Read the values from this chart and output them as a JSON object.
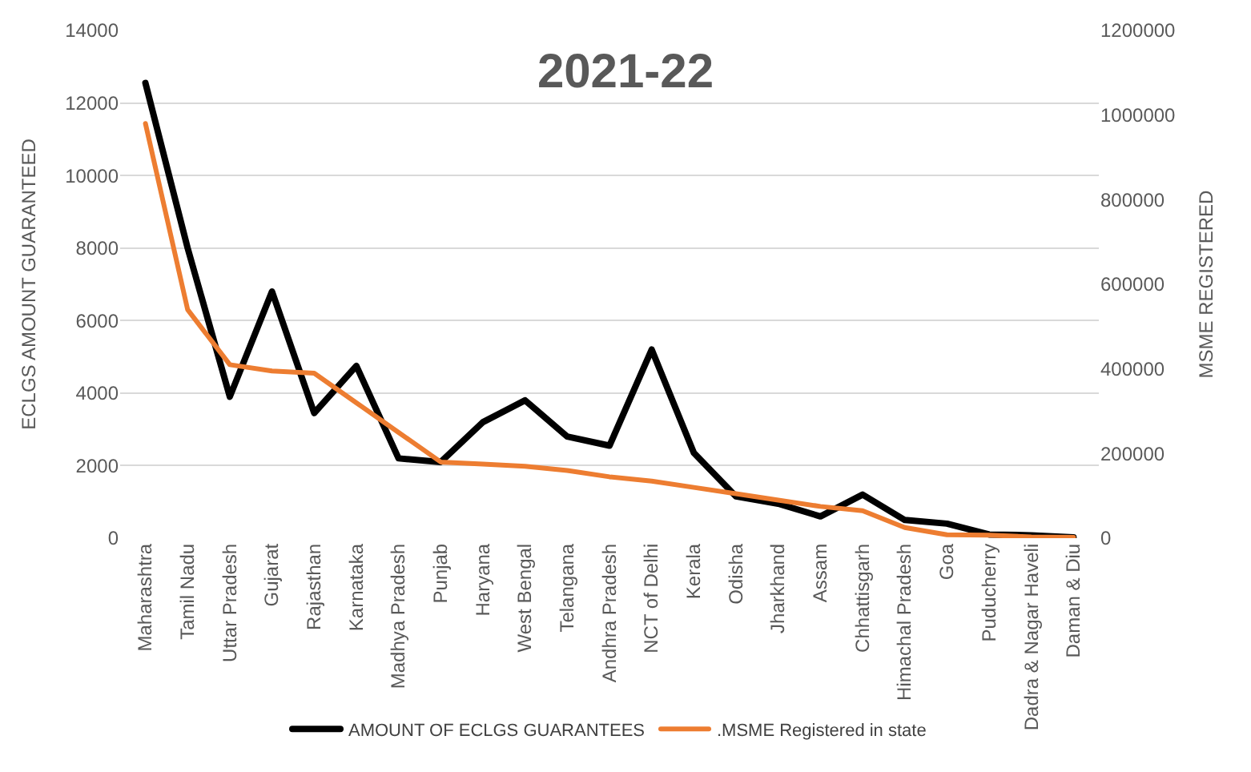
{
  "chart_data": {
    "type": "line",
    "title": "2021-22",
    "ylabel": "ECLGS AMOUNT GUARANTEED",
    "y2label": "MSME REGISTERED",
    "categories": [
      "Maharashtra",
      "Tamil Nadu",
      "Uttar Pradesh",
      "Gujarat",
      "Rajasthan",
      "Karnataka",
      "Madhya Pradesh",
      "Punjab",
      "Haryana",
      "West Bengal",
      "Telangana",
      "Andhra Pradesh",
      "NCT of Delhi",
      "Kerala",
      "Odisha",
      "Jharkhand",
      "Assam",
      "Chhattisgarh",
      "Himachal Pradesh",
      "Goa",
      "Puducherry",
      "Dadra & Nagar Haveli",
      "Daman & Diu"
    ],
    "series": [
      {
        "name": "AMOUNT OF ECLGS GUARANTEES",
        "color": "#000000",
        "values": [
          12550,
          8000,
          3900,
          6800,
          3450,
          4750,
          2200,
          2100,
          3200,
          3800,
          2800,
          2550,
          5200,
          2350,
          1150,
          950,
          600,
          1200,
          500,
          400,
          100,
          80,
          20
        ]
      },
      {
        "name": ".MSME Registered in state",
        "color": "#ed7d31",
        "axis": "y2",
        "values": [
          980000,
          540000,
          410000,
          395000,
          390000,
          320000,
          250000,
          180000,
          175000,
          170000,
          160000,
          145000,
          135000,
          120000,
          105000,
          90000,
          75000,
          65000,
          25000,
          8000,
          7000,
          3000,
          2000
        ]
      }
    ],
    "ylim": [
      0,
      14000
    ],
    "yticks": [
      0,
      2000,
      4000,
      6000,
      8000,
      10000,
      12000,
      14000
    ],
    "y2lim": [
      0,
      1200000
    ],
    "y2ticks": [
      0,
      200000,
      400000,
      600000,
      800000,
      1000000,
      1200000
    ],
    "grid": "y",
    "legend": "bottom",
    "marker": "none",
    "line_style": "solid"
  }
}
